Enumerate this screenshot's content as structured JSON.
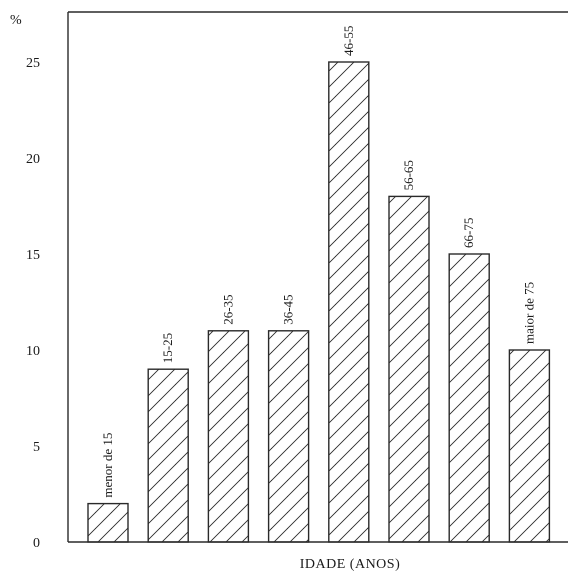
{
  "chart_data": {
    "type": "bar",
    "title": "",
    "xlabel": "IDADE (ANOS)",
    "ylabel": "%",
    "ylim": [
      0,
      27
    ],
    "yticks": [
      0,
      5,
      10,
      15,
      20,
      25
    ],
    "grid": false,
    "legend": "none",
    "bar_fill": "hatched",
    "categories": [
      "menor de 15",
      "15-25",
      "26-35",
      "36-45",
      "46-55",
      "56-65",
      "66-75",
      "maior de 75"
    ],
    "values": [
      2,
      9,
      11,
      11,
      25,
      18,
      15,
      10
    ],
    "colors": {
      "line": "#2a2a2a",
      "text": "#1a1a1a",
      "background": "#ffffff"
    }
  }
}
